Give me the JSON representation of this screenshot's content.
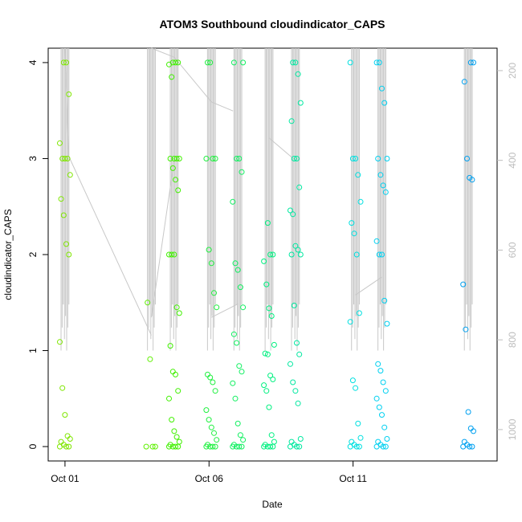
{
  "chart_data": {
    "type": "scatter",
    "title": "ATOM3 Southbound cloudindicator_CAPS",
    "xlabel": "Date",
    "ylabel": "cloudindicator_CAPS",
    "xlim": [
      "2016-09-30T10:00",
      "2016-10-16T00:00"
    ],
    "ylim": [
      -0.15,
      4.15
    ],
    "x_ticks": [
      {
        "date": "2016-10-01",
        "label": "Oct 01"
      },
      {
        "date": "2016-10-06",
        "label": "Oct 06"
      },
      {
        "date": "2016-10-11",
        "label": "Oct 11"
      }
    ],
    "y_ticks": [
      0,
      1,
      2,
      3,
      4
    ],
    "secondary_axis": {
      "side": "right",
      "label": "",
      "reversed": true,
      "ylim": [
        1070,
        150
      ],
      "ticks": [
        200,
        400,
        600,
        800,
        1000
      ],
      "color": "#bdbdbd"
    },
    "grid": false,
    "legend": "none",
    "marker": "open-circle",
    "color_scale": "rainbow by time (green to blue)",
    "series": [
      {
        "x": "2016-10-01T00:00",
        "color": "#7fe600",
        "y": [
          0,
          0,
          0,
          0.02,
          0.05,
          0.08,
          0.11,
          0.33,
          0.61,
          1.09,
          2.0,
          2.11,
          2.41,
          2.58,
          2.83,
          3.0,
          3.0,
          3.0,
          3.16,
          3.67,
          4.0,
          4.0
        ]
      },
      {
        "x": "2016-10-04T00:00",
        "color": "#5ef000",
        "y": [
          0,
          0,
          0,
          0.91,
          1.5
        ]
      },
      {
        "x": "2016-10-04T19:00",
        "color": "#40f000",
        "y": [
          0,
          0,
          0,
          0,
          0.02,
          0.05,
          0.1,
          0.16,
          0.28,
          0.5,
          0.58,
          0.75,
          0.78,
          1.05,
          1.39,
          1.45,
          2.0,
          2.0,
          2.0,
          2.67,
          2.78,
          2.9,
          3.0,
          3.0,
          3.0,
          3.0,
          3.85,
          3.98,
          4.0,
          4.0,
          4.0
        ]
      },
      {
        "x": "2016-10-06T02:00",
        "color": "#20f040",
        "y": [
          0,
          0,
          0,
          0,
          0.02,
          0.07,
          0.14,
          0.2,
          0.28,
          0.38,
          0.58,
          0.67,
          0.72,
          0.75,
          1.45,
          1.6,
          1.91,
          2.05,
          3.0,
          3.0,
          3.0,
          4.0,
          4.0
        ]
      },
      {
        "x": "2016-10-07T00:00",
        "color": "#10f060",
        "y": [
          0,
          0,
          0,
          0,
          0.02,
          0.07,
          0.12,
          0.24,
          0.5,
          0.66,
          0.78,
          0.84,
          1.08,
          1.17,
          1.45,
          1.66,
          1.84,
          1.91,
          2.55,
          2.86,
          3.0,
          3.0,
          4.0,
          4.0
        ]
      },
      {
        "x": "2016-10-08T02:00",
        "color": "#00f080",
        "y": [
          0,
          0,
          0,
          0,
          0.02,
          0.05,
          0.12,
          0.41,
          0.58,
          0.64,
          0.7,
          0.74,
          0.96,
          0.97,
          1.06,
          1.36,
          1.44,
          1.69,
          1.93,
          2.0,
          2.0,
          2.33
        ]
      },
      {
        "x": "2016-10-09T00:00",
        "color": "#00e8a0",
        "y": [
          0,
          0,
          0,
          0.02,
          0.05,
          0.08,
          0.45,
          0.58,
          0.67,
          0.86,
          0.96,
          1.08,
          1.47,
          2.0,
          2.0,
          2.05,
          2.09,
          2.42,
          2.46,
          2.7,
          3.0,
          3.0,
          3.39,
          3.58,
          3.88,
          4.0,
          4.0
        ]
      },
      {
        "x": "2016-10-11T02:00",
        "color": "#00e0e0",
        "y": [
          0,
          0,
          0,
          0.02,
          0.05,
          0.09,
          0.24,
          0.61,
          0.69,
          1.3,
          1.39,
          2.0,
          2.22,
          2.33,
          2.55,
          2.83,
          3.0,
          3.0,
          4.0
        ]
      },
      {
        "x": "2016-10-12T00:00",
        "color": "#00d0f0",
        "y": [
          0,
          0,
          0,
          0.02,
          0.05,
          0.08,
          0.2,
          0.33,
          0.41,
          0.5,
          0.58,
          0.67,
          0.79,
          0.86,
          1.28,
          1.52,
          2.0,
          2.0,
          2.14,
          2.65,
          2.72,
          2.83,
          3.0,
          3.0,
          3.58,
          3.73,
          4.0,
          4.0
        ]
      },
      {
        "x": "2016-10-15T00:00",
        "color": "#00a0f0",
        "y": [
          0,
          0,
          0,
          0.02,
          0.05,
          0.16,
          0.19,
          0.36,
          1.22,
          1.69,
          2.78,
          2.8,
          3.0,
          3.8,
          4.0,
          4.0
        ]
      }
    ],
    "secondary_traces": [
      {
        "x": [
          "2016-10-01T00:00",
          "2016-10-01T03:00",
          "2016-10-04T00:00"
        ],
        "y": [
          150,
          390,
          790
        ]
      },
      {
        "x": [
          "2016-10-04T00:00",
          "2016-10-04T19:00"
        ],
        "y": [
          750,
          400
        ]
      },
      {
        "x": [
          "2016-10-04T00:00",
          "2016-10-04T19:00"
        ],
        "y": [
          150,
          170
        ]
      },
      {
        "x": [
          "2016-10-04T19:00",
          "2016-10-06T02:00",
          "2016-10-06T20:00"
        ],
        "y": [
          170,
          270,
          290
        ]
      },
      {
        "x": [
          "2016-10-06T02:00",
          "2016-10-07T00:00"
        ],
        "y": [
          750,
          720
        ]
      },
      {
        "x": [
          "2016-10-08T02:00",
          "2016-10-09T00:00"
        ],
        "y": [
          350,
          400
        ]
      },
      {
        "x": [
          "2016-10-11T02:00",
          "2016-10-12T00:00"
        ],
        "y": [
          700,
          660
        ]
      }
    ]
  }
}
